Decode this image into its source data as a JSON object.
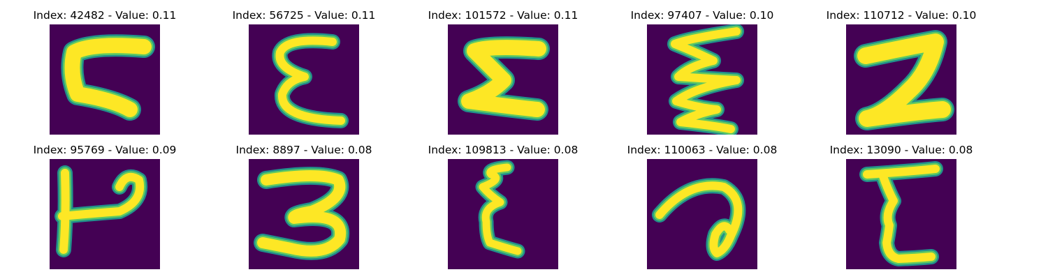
{
  "colors": {
    "background": "#440154",
    "outer": "#21908c",
    "mid": "#5ec962",
    "inner": "#fde725"
  },
  "panels": [
    {
      "title": "Index: 42482 - Value: 0.11",
      "glyph": "c-wide"
    },
    {
      "title": "Index: 56725 - Value: 0.11",
      "glyph": "epsilon"
    },
    {
      "title": "Index: 101572 - Value: 0.11",
      "glyph": "sigma"
    },
    {
      "title": "Index: 97407 - Value: 0.10",
      "glyph": "zigzag"
    },
    {
      "title": "Index: 110712 - Value: 0.10",
      "glyph": "two"
    },
    {
      "title": "Index: 95769 - Value: 0.09",
      "glyph": "p-shape"
    },
    {
      "title": "Index: 8897 - Value: 0.08",
      "glyph": "three"
    },
    {
      "title": "Index: 109813 - Value: 0.08",
      "glyph": "epsilon-narrow"
    },
    {
      "title": "Index: 110063 - Value: 0.08",
      "glyph": "loop"
    },
    {
      "title": "Index: 13090 - Value: 0.08",
      "glyph": "e-shape"
    }
  ]
}
